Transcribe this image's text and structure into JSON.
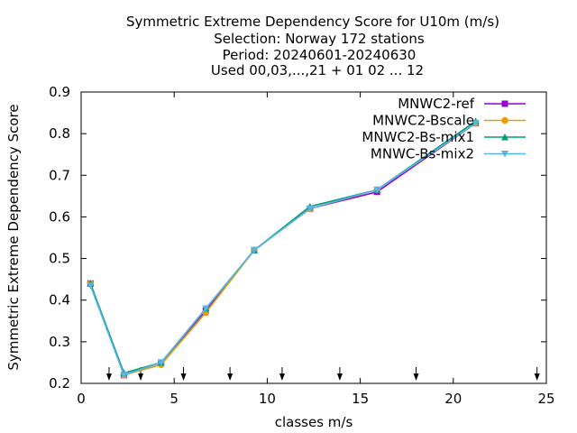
{
  "chart_data": {
    "type": "line",
    "title_lines": [
      "Symmetric Extreme Dependency Score  for U10m (m/s)",
      "Selection: Norway    172 stations",
      "Period: 20240601-20240630",
      "Used 00,03,...,21 + 01 02 ... 12"
    ],
    "xlabel": "classes m/s",
    "ylabel": "Symmetric Extreme Dependency Score",
    "xlim": [
      0,
      25
    ],
    "ylim": [
      0.2,
      0.9
    ],
    "x_ticks": [
      "0",
      "5",
      "10",
      "15",
      "20",
      "25"
    ],
    "y_ticks": [
      "0.2",
      "0.3",
      "0.4",
      "0.5",
      "0.6",
      "0.7",
      "0.8",
      "0.9"
    ],
    "grid": false,
    "legend_position": "top-right",
    "class_boundary_arrows": [
      1.5,
      3.2,
      5.5,
      8.0,
      10.8,
      13.9,
      18.0,
      24.5
    ],
    "x": [
      0.5,
      2.3,
      4.3,
      6.7,
      9.3,
      12.3,
      15.9,
      21.2
    ],
    "series": [
      {
        "name": "MNWC2-ref",
        "color": "#9400d3",
        "marker": "square",
        "values": [
          0.44,
          0.22,
          0.25,
          0.375,
          0.52,
          0.62,
          0.66,
          0.825
        ]
      },
      {
        "name": "MNWC2-Bscale",
        "color": "#e69f00",
        "marker": "circle",
        "values": [
          0.44,
          0.22,
          0.245,
          0.37,
          0.52,
          0.62,
          0.665,
          0.825
        ]
      },
      {
        "name": "MNWC2-Bs-mix1",
        "color": "#009e73",
        "marker": "triangle",
        "values": [
          0.44,
          0.225,
          0.25,
          0.38,
          0.52,
          0.625,
          0.665,
          0.83
        ]
      },
      {
        "name": "MNWC-Bs-mix2",
        "color": "#56b4e9",
        "marker": "triangle-down",
        "values": [
          0.435,
          0.22,
          0.25,
          0.38,
          0.52,
          0.62,
          0.665,
          0.825
        ]
      }
    ]
  }
}
